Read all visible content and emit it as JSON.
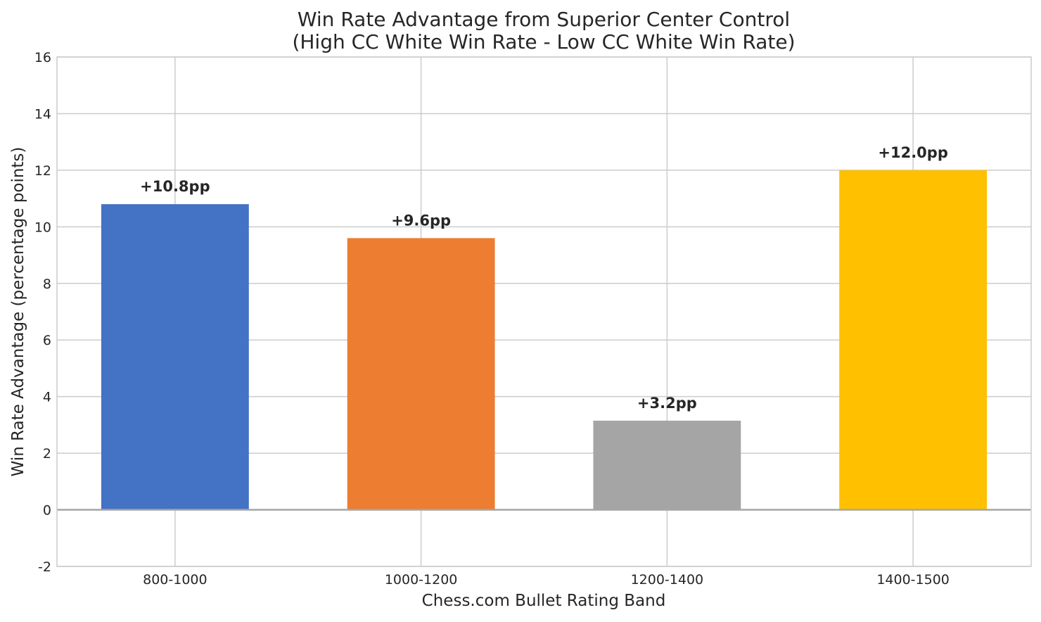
{
  "chart_data": {
    "type": "bar",
    "title": [
      "Win Rate Advantage from Superior Center Control",
      "(High CC White Win Rate - Low CC White Win Rate)"
    ],
    "xlabel": "Chess.com Bullet Rating Band",
    "ylabel": "Win Rate Advantage (percentage points)",
    "categories": [
      "800-1000",
      "1000-1200",
      "1200-1400",
      "1400-1500"
    ],
    "values": [
      10.8,
      9.6,
      3.15,
      12.0
    ],
    "data_labels": [
      "+10.8pp",
      "+9.6pp",
      "+3.2pp",
      "+12.0pp"
    ],
    "colors": [
      "#4472C4",
      "#ED7D31",
      "#A5A5A5",
      "#FFC000"
    ],
    "ylim": [
      -2,
      16
    ],
    "yticks": [
      -2,
      0,
      2,
      4,
      6,
      8,
      10,
      12,
      14,
      16
    ],
    "grid": true,
    "zero_line_color": "#A5A5A5",
    "grid_color": "#CCCCCC",
    "frame_color": "#CCCCCC"
  }
}
